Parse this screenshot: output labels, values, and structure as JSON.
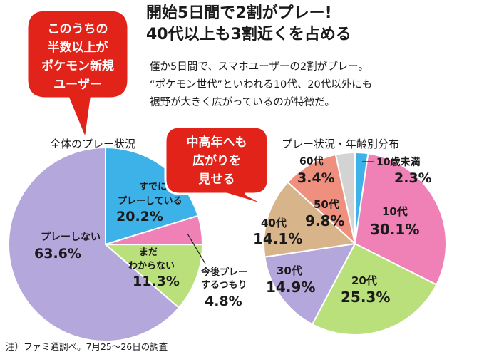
{
  "headline": {
    "line1": "開始5日間で2割がプレー!",
    "line2": "40代以上も3割近くを占める"
  },
  "lead": {
    "line1": "僅か5日間で、スマホユーザーの2割がプレー。",
    "line2": "“ポケモン世代”といわれる10代、20代以外にも",
    "line3": "裾野が大きく広がっているのが特徴だ。"
  },
  "callout_new_users": {
    "line1": "このうちの",
    "line2": "半数以上が",
    "line3": "ポケモン新規",
    "line4": "ユーザー"
  },
  "callout_middle_age": {
    "line1": "中高年へも",
    "line2": "広がりを",
    "line3": "見せる"
  },
  "note": "注）ファミ通調べ。7月25〜26日の調査",
  "colors": {
    "callout_red": "#e2231a",
    "slice_cyan": "#3db2e8",
    "slice_pink": "#f081b6",
    "slice_green": "#b9e07a",
    "slice_lavender": "#b3a7dc",
    "slice_tan": "#d8b48a",
    "slice_salmon": "#ef907e",
    "slice_gray": "#d3d3d3"
  },
  "chart_data": [
    {
      "type": "pie",
      "title": "全体のプレー状況",
      "slices": [
        {
          "label": "すでに\nプレーしている",
          "value": 20.2,
          "display": "20.2%",
          "color": "#3db2e8"
        },
        {
          "label": "今後プレー\nするつもり",
          "value": 4.8,
          "display": "4.8%",
          "color": "#f081b6"
        },
        {
          "label": "まだ\nわからない",
          "value": 11.3,
          "display": "11.3%",
          "color": "#b9e07a"
        },
        {
          "label": "プレーしない",
          "value": 63.6,
          "display": "63.6%",
          "color": "#b3a7dc"
        }
      ]
    },
    {
      "type": "pie",
      "title": "プレー状況・年齢別分布",
      "slices": [
        {
          "label": "10歳未満",
          "value": 2.3,
          "display": "2.3%",
          "color": "#3db2e8"
        },
        {
          "label": "10代",
          "value": 30.1,
          "display": "30.1%",
          "color": "#f081b6"
        },
        {
          "label": "20代",
          "value": 25.3,
          "display": "25.3%",
          "color": "#b9e07a"
        },
        {
          "label": "30代",
          "value": 14.9,
          "display": "14.9%",
          "color": "#b3a7dc"
        },
        {
          "label": "40代",
          "value": 14.1,
          "display": "14.1%",
          "color": "#d8b48a"
        },
        {
          "label": "50代",
          "value": 9.8,
          "display": "9.8%",
          "color": "#ef907e"
        },
        {
          "label": "60代",
          "value": 3.4,
          "display": "3.4%",
          "color": "#d3d3d3"
        }
      ]
    }
  ]
}
